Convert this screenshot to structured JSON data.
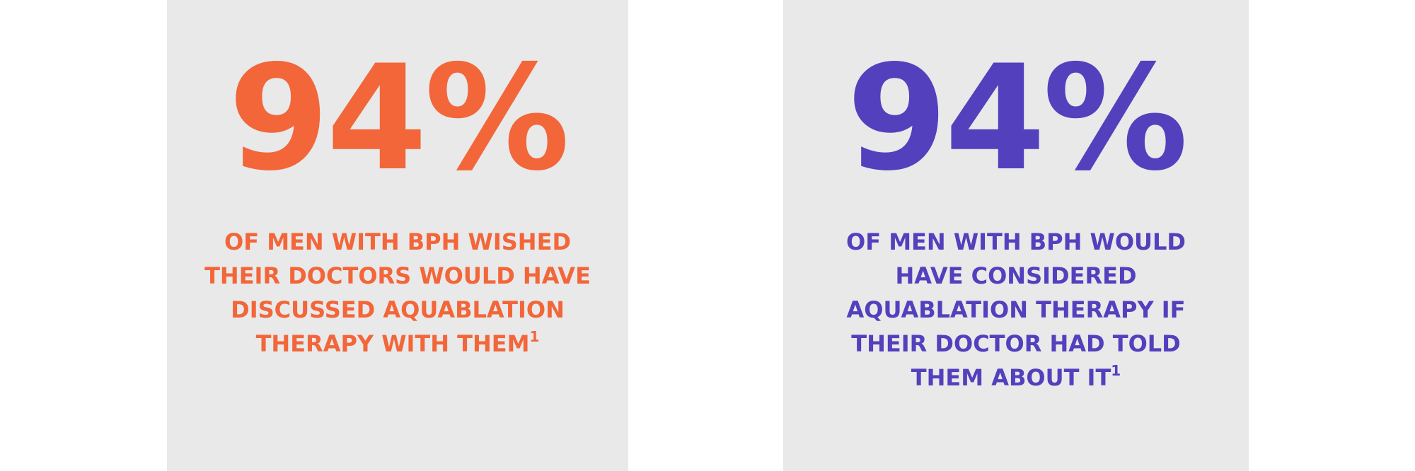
{
  "panels": [
    {
      "stat": "94%",
      "caption_lines": [
        "OF MEN WITH BPH WISHED",
        "THEIR DOCTORS WOULD HAVE",
        "DISCUSSED AQUABLATION",
        "THERAPY WITH THEM"
      ],
      "footnote": "1"
    },
    {
      "stat": "94%",
      "caption_lines": [
        "OF MEN WITH BPH WOULD",
        "HAVE CONSIDERED",
        "AQUABLATION THERAPY IF",
        "THEIR DOCTOR HAD TOLD",
        "THEM ABOUT IT"
      ],
      "footnote": "1"
    }
  ]
}
